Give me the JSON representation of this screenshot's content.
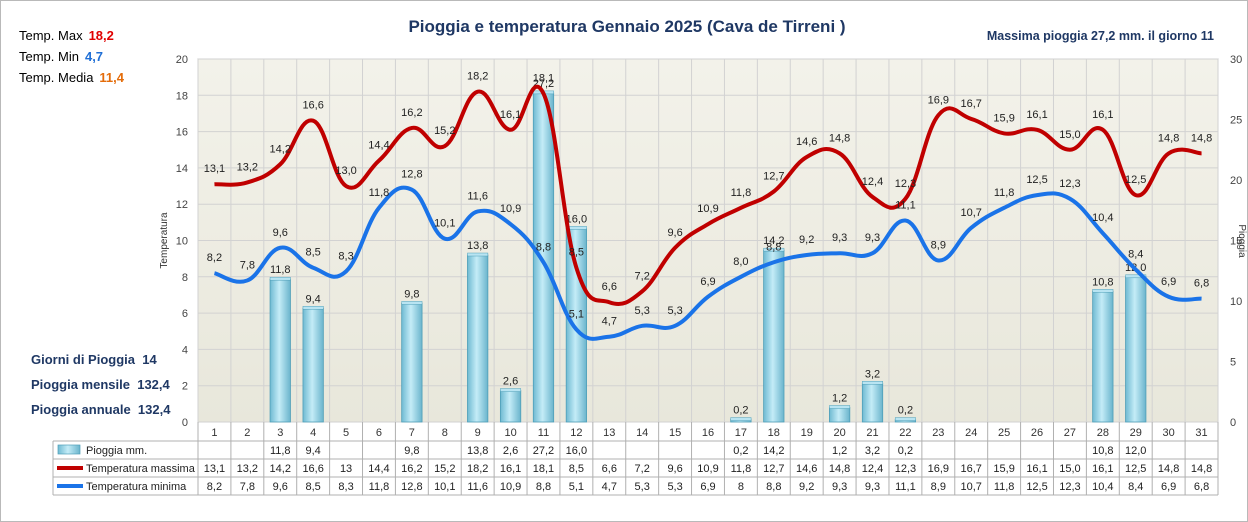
{
  "title": "Pioggia e temperatura Gennaio 2025 (Cava de Tirreni )",
  "max_rain_text": "Massima pioggia  27,2 mm. il giorno   11",
  "stats": [
    {
      "label": "Temp. Max",
      "value": "18,2",
      "color": "#e00000"
    },
    {
      "label": "Temp. Min",
      "value": "4,7",
      "color": "#1f6fd6"
    },
    {
      "label": "Temp. Media",
      "value": "11,4",
      "color": "#e46c0a"
    }
  ],
  "rain_summary": [
    {
      "label": "Giorni di Pioggia",
      "value": "14"
    },
    {
      "label": "Pioggia mensile",
      "value": "132,4"
    },
    {
      "label": "Pioggia annuale",
      "value": "132,4"
    }
  ],
  "colors": {
    "max_line": "#c00000",
    "min_line": "#1a73e8",
    "bar_fill": "#8fd3e8",
    "plot_bg": "#efeee4",
    "title": "#1f3864"
  },
  "chart_data": {
    "type": "bar+line",
    "title": "Pioggia e temperatura Gennaio 2025 (Cava de Tirreni )",
    "categories": [
      "1",
      "2",
      "3",
      "4",
      "5",
      "6",
      "7",
      "8",
      "9",
      "10",
      "11",
      "12",
      "13",
      "14",
      "15",
      "16",
      "17",
      "18",
      "19",
      "20",
      "21",
      "22",
      "23",
      "24",
      "25",
      "26",
      "27",
      "28",
      "29",
      "30",
      "31"
    ],
    "ylabel_left": "Temperatura",
    "ylabel_right": "Pioggia",
    "ylim_left": [
      0,
      20
    ],
    "yticks_left": [
      0,
      2,
      4,
      6,
      8,
      10,
      12,
      14,
      16,
      18,
      20
    ],
    "ylim_right": [
      0,
      30
    ],
    "yticks_right": [
      0,
      5,
      10,
      15,
      20,
      25,
      30
    ],
    "grid": true,
    "series": [
      {
        "name": "Pioggia mm.",
        "type": "bar",
        "axis": "right",
        "values": [
          null,
          null,
          11.8,
          9.4,
          null,
          null,
          9.8,
          null,
          13.8,
          2.6,
          27.2,
          16.0,
          null,
          null,
          null,
          null,
          0.2,
          14.2,
          null,
          1.2,
          3.2,
          0.2,
          null,
          null,
          null,
          null,
          null,
          10.8,
          12.0,
          null,
          null
        ],
        "labels": [
          "",
          "",
          "11,8",
          "9,4",
          "",
          "",
          "9,8",
          "",
          "13,8",
          "2,6",
          "27,2",
          "16,0",
          "",
          "",
          "",
          "",
          "0,2",
          "14,2",
          "",
          "1,2",
          "3,2",
          "0,2",
          "",
          "",
          "",
          "",
          "",
          "10,8",
          "12,0",
          "",
          ""
        ]
      },
      {
        "name": "Temperatura massima",
        "type": "line",
        "axis": "left",
        "values": [
          13.1,
          13.2,
          14.2,
          16.6,
          13.0,
          14.4,
          16.2,
          15.2,
          18.2,
          16.1,
          18.1,
          8.5,
          6.6,
          7.2,
          9.6,
          10.9,
          11.8,
          12.7,
          14.6,
          14.8,
          12.4,
          12.3,
          16.9,
          16.7,
          15.9,
          16.1,
          15.0,
          16.1,
          12.5,
          14.8,
          14.8
        ],
        "labels": [
          "13,1",
          "13,2",
          "14,2",
          "16,6",
          "13,0",
          "14,4",
          "16,2",
          "15,2",
          "18,2",
          "16,1",
          "18,1",
          "8,5",
          "6,6",
          "7,2",
          "9,6",
          "10,9",
          "11,8",
          "12,7",
          "14,6",
          "14,8",
          "12,4",
          "12,3",
          "16,9",
          "16,7",
          "15,9",
          "16,1",
          "15,0",
          "16,1",
          "12,5",
          "14,8",
          "14,8"
        ]
      },
      {
        "name": "Temperatura minima",
        "type": "line",
        "axis": "left",
        "values": [
          8.2,
          7.8,
          9.6,
          8.5,
          8.3,
          11.8,
          12.8,
          10.1,
          11.6,
          10.9,
          8.8,
          5.1,
          4.7,
          5.3,
          5.3,
          6.9,
          8.0,
          8.8,
          9.2,
          9.3,
          9.3,
          11.1,
          8.9,
          10.7,
          11.8,
          12.5,
          12.3,
          10.4,
          8.4,
          6.9,
          6.8
        ],
        "labels": [
          "8,2",
          "7,8",
          "9,6",
          "8,5",
          "8,3",
          "11,8",
          "12,8",
          "10,1",
          "11,6",
          "10,9",
          "8,8",
          "5,1",
          "4,7",
          "5,3",
          "5,3",
          "6,9",
          "8,0",
          "8,8",
          "9,2",
          "9,3",
          "9,3",
          "11,1",
          "8,9",
          "10,7",
          "11,8",
          "12,5",
          "12,3",
          "10,4",
          "8,4",
          "6,9",
          "6,8"
        ]
      }
    ],
    "table": {
      "rows": [
        {
          "name": "Pioggia mm.",
          "cells": [
            "",
            "",
            "11,8",
            "9,4",
            "",
            "",
            "9,8",
            "",
            "13,8",
            "2,6",
            "27,2",
            "16,0",
            "",
            "",
            "",
            "",
            "0,2",
            "14,2",
            "",
            "1,2",
            "3,2",
            "0,2",
            "",
            "",
            "",
            "",
            "",
            "10,8",
            "12,0",
            "",
            ""
          ]
        },
        {
          "name": "Temperatura massima",
          "cells": [
            "13,1",
            "13,2",
            "14,2",
            "16,6",
            "13",
            "14,4",
            "16,2",
            "15,2",
            "18,2",
            "16,1",
            "18,1",
            "8,5",
            "6,6",
            "7,2",
            "9,6",
            "10,9",
            "11,8",
            "12,7",
            "14,6",
            "14,8",
            "12,4",
            "12,3",
            "16,9",
            "16,7",
            "15,9",
            "16,1",
            "15,0",
            "16,1",
            "12,5",
            "14,8",
            "14,8"
          ]
        },
        {
          "name": "Temperatura minima",
          "cells": [
            "8,2",
            "7,8",
            "9,6",
            "8,5",
            "8,3",
            "11,8",
            "12,8",
            "10,1",
            "11,6",
            "10,9",
            "8,8",
            "5,1",
            "4,7",
            "5,3",
            "5,3",
            "6,9",
            "8",
            "8,8",
            "9,2",
            "9,3",
            "9,3",
            "11,1",
            "8,9",
            "10,7",
            "11,8",
            "12,5",
            "12,3",
            "10,4",
            "8,4",
            "6,9",
            "6,8"
          ]
        }
      ]
    }
  }
}
